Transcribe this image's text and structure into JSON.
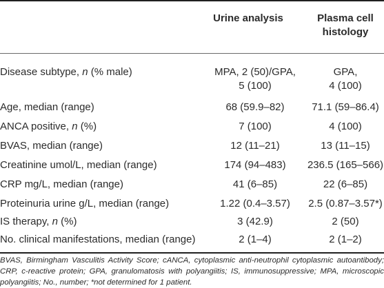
{
  "header": {
    "col1": "Urine analysis",
    "col2_line1": "Plasma cell",
    "col2_line2": "histology"
  },
  "rows": [
    {
      "label_pre": "Disease subtype, ",
      "label_em": "n",
      "label_post": " (% male)",
      "v1_line1": "MPA, 2 (50)/GPA,",
      "v1_line2": "5 (100)",
      "v2_line1": "GPA,",
      "v2_line2": "4 (100)"
    },
    {
      "label_pre": "Age, median (range)",
      "label_em": "",
      "label_post": "",
      "v1": "68 (59.9–82)",
      "v2": "71.1 (59–86.4)"
    },
    {
      "label_pre": "ANCA positive, ",
      "label_em": "n",
      "label_post": " (%)",
      "v1": "7 (100)",
      "v2": "4 (100)"
    },
    {
      "label_pre": "BVAS, median (range)",
      "label_em": "",
      "label_post": "",
      "v1": "12 (11–21)",
      "v2": "13 (11–15)"
    },
    {
      "label_pre": "Creatinine umol/L, median (range)",
      "label_em": "",
      "label_post": "",
      "v1": "174 (94–483)",
      "v2": "236.5 (165–566)"
    },
    {
      "label_pre": "CRP mg/L, median (range)",
      "label_em": "",
      "label_post": "",
      "v1": "41 (6–85)",
      "v2": "22 (6–85)"
    },
    {
      "label_pre": "Proteinuria urine g/L, median (range)",
      "label_em": "",
      "label_post": "",
      "v1": "1.22 (0.4–3.57)",
      "v2": "2.5 (0.87–3.57*)"
    },
    {
      "label_pre": "IS therapy, ",
      "label_em": "n",
      "label_post": " (%)",
      "v1": "3 (42.9)",
      "v2": "2 (50)"
    },
    {
      "label_pre": "No. clinical manifestations, median (range)",
      "label_em": "",
      "label_post": "",
      "v1": "2 (1–4)",
      "v2": "2 (1–2)"
    }
  ],
  "footnote": "BVAS, Birmingham Vasculitis Activity Score; cANCA, cytoplasmic anti-neutrophil cytoplasmic autoantibody; CRP, c-reactive protein; GPA, granulomatosis with polyangiitis; IS, immunosuppressive; MPA, microscopic polyangiitis; No., number; *not determined for 1 patient."
}
